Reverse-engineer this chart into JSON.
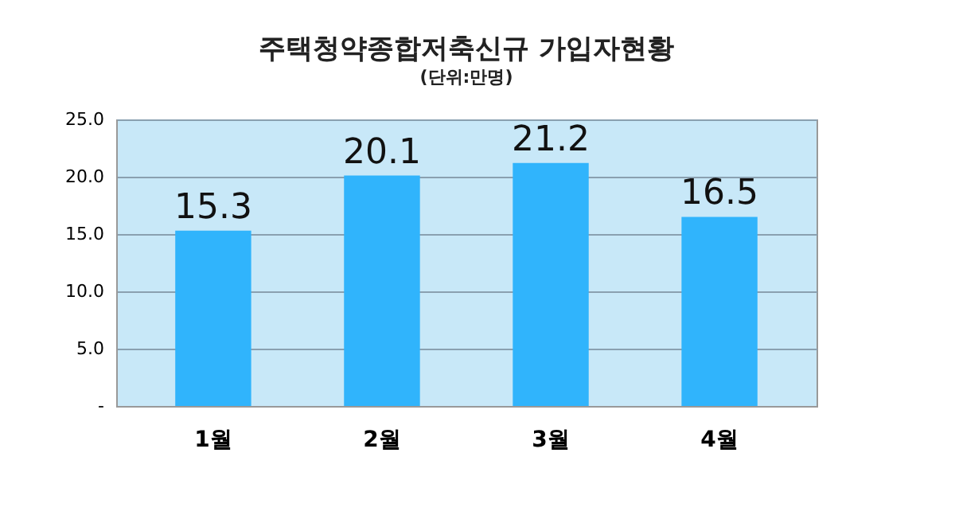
{
  "chart_data": {
    "type": "bar",
    "title": "주택청약종합저축신규 가입자현황",
    "subtitle": "(단위:만명)",
    "categories": [
      "1월",
      "2월",
      "3월",
      "4월"
    ],
    "values": [
      15.3,
      20.1,
      21.2,
      16.5
    ],
    "color": "#30b4fc",
    "ylim": [
      0,
      25
    ],
    "yticks": [
      {
        "value": 0,
        "label": "-"
      },
      {
        "value": 5,
        "label": "5.0"
      },
      {
        "value": 10,
        "label": "10.0"
      },
      {
        "value": 15,
        "label": "15.0"
      },
      {
        "value": 20,
        "label": "20.0"
      },
      {
        "value": 25,
        "label": "25.0"
      }
    ],
    "grid": "y",
    "data_labels": true
  }
}
